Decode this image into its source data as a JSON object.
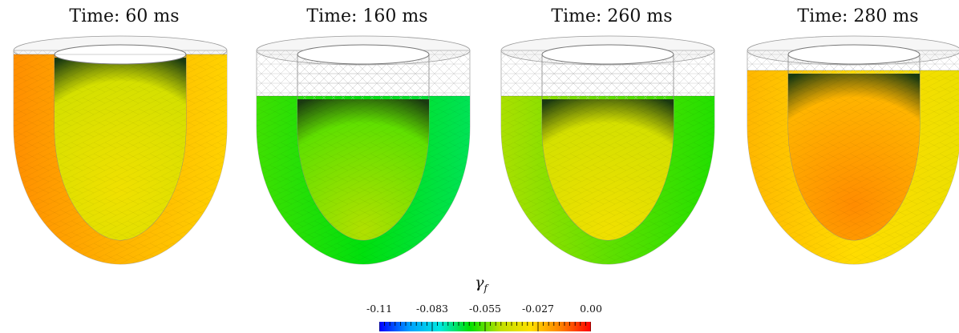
{
  "panels": [
    {
      "title": "Time: 60 ms",
      "wall_level": 0.78,
      "cavity_level": 0.68
    },
    {
      "title": "Time: 160 ms",
      "wall_level": 0.42,
      "cavity_level": 0.56
    },
    {
      "title": "Time: 260 ms",
      "wall_level": 0.5,
      "cavity_level": 0.68
    },
    {
      "title": "Time: 280 ms",
      "wall_level": 0.72,
      "cavity_level": 0.84
    }
  ],
  "colorbar": {
    "label": "γ",
    "label_sub": "f",
    "ticks": [
      "-0.11",
      "-0.083",
      "-0.055",
      "-0.027",
      "0.00"
    ],
    "colors": [
      "#0000ff",
      "#00a0ff",
      "#00e8e0",
      "#00e000",
      "#c0e000",
      "#ffe000",
      "#ff8000",
      "#ff0000"
    ]
  }
}
